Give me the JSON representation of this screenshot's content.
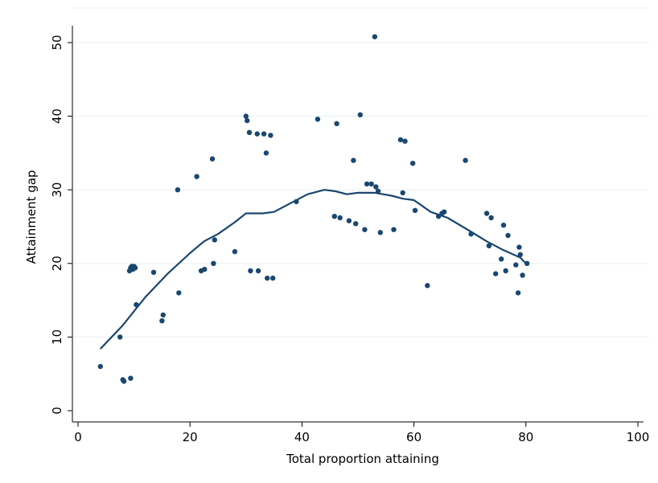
{
  "chart_data": {
    "type": "scatter",
    "xlabel": "Total proportion attaining",
    "ylabel": "Attainment gap",
    "xlim": [
      0,
      100
    ],
    "ylim": [
      0,
      50
    ],
    "xticks": [
      0,
      20,
      40,
      60,
      80,
      100
    ],
    "yticks": [
      0,
      10,
      20,
      30,
      40,
      50
    ],
    "grid": "horizontal",
    "colors": {
      "marker": "#1a476f",
      "line": "#1a476f",
      "grid": "#eaf2f3",
      "axis": "#000000"
    },
    "series": [
      {
        "type": "scatter",
        "points": [
          [
            4,
            6
          ],
          [
            7.5,
            10
          ],
          [
            8,
            4.2
          ],
          [
            8.2,
            4
          ],
          [
            9.4,
            4.4
          ],
          [
            9.2,
            19
          ],
          [
            9.4,
            19.4
          ],
          [
            9.6,
            19.6
          ],
          [
            9.8,
            19.2
          ],
          [
            10,
            19.6
          ],
          [
            10.2,
            19.4
          ],
          [
            10.4,
            14.4
          ],
          [
            13.5,
            18.8
          ],
          [
            15,
            12.2
          ],
          [
            15.2,
            13
          ],
          [
            18,
            16
          ],
          [
            17.8,
            30
          ],
          [
            21.2,
            31.8
          ],
          [
            22,
            19
          ],
          [
            22.6,
            19.2
          ],
          [
            24,
            34.2
          ],
          [
            24.2,
            20
          ],
          [
            24.4,
            23.2
          ],
          [
            28,
            21.6
          ],
          [
            30,
            40
          ],
          [
            30.2,
            39.4
          ],
          [
            30.6,
            37.8
          ],
          [
            30.8,
            19
          ],
          [
            32,
            37.6
          ],
          [
            32.2,
            19
          ],
          [
            33.2,
            37.6
          ],
          [
            33.6,
            35
          ],
          [
            33.8,
            18
          ],
          [
            34.4,
            37.4
          ],
          [
            34.8,
            18
          ],
          [
            39,
            28.4
          ],
          [
            42.8,
            39.6
          ],
          [
            45.8,
            26.4
          ],
          [
            46.2,
            39
          ],
          [
            46.8,
            26.2
          ],
          [
            48.4,
            25.8
          ],
          [
            49.2,
            34
          ],
          [
            49.6,
            25.4
          ],
          [
            50.4,
            40.2
          ],
          [
            51.2,
            24.6
          ],
          [
            51.6,
            30.8
          ],
          [
            52.4,
            30.8
          ],
          [
            53,
            50.8
          ],
          [
            53.2,
            30.4
          ],
          [
            53.6,
            29.8
          ],
          [
            54,
            24.2
          ],
          [
            56.4,
            24.6
          ],
          [
            57.6,
            36.8
          ],
          [
            58,
            29.6
          ],
          [
            58.4,
            36.6
          ],
          [
            59.8,
            33.6
          ],
          [
            60.2,
            27.2
          ],
          [
            62.4,
            17
          ],
          [
            64.4,
            26.4
          ],
          [
            65,
            26.8
          ],
          [
            65.4,
            27
          ],
          [
            69.2,
            34
          ],
          [
            70.2,
            24
          ],
          [
            73,
            26.8
          ],
          [
            73.4,
            22.4
          ],
          [
            73.8,
            26.2
          ],
          [
            74.6,
            18.6
          ],
          [
            75.6,
            20.6
          ],
          [
            76,
            25.2
          ],
          [
            76.4,
            19
          ],
          [
            76.8,
            23.8
          ],
          [
            78.2,
            19.8
          ],
          [
            78.6,
            16
          ],
          [
            78.8,
            22.2
          ],
          [
            79,
            21.2
          ],
          [
            79.4,
            18.4
          ],
          [
            80.2,
            20
          ]
        ]
      },
      {
        "type": "line",
        "points": [
          [
            4,
            8.4
          ],
          [
            8,
            11.6
          ],
          [
            12,
            15.4
          ],
          [
            16,
            18.6
          ],
          [
            20,
            21.4
          ],
          [
            22.5,
            23
          ],
          [
            25,
            24
          ],
          [
            28,
            25.6
          ],
          [
            30,
            26.8
          ],
          [
            33,
            26.8
          ],
          [
            35,
            27
          ],
          [
            38,
            28.2
          ],
          [
            41,
            29.4
          ],
          [
            44,
            30
          ],
          [
            46,
            29.8
          ],
          [
            48,
            29.4
          ],
          [
            50,
            29.6
          ],
          [
            53,
            29.6
          ],
          [
            56,
            29.2
          ],
          [
            58,
            28.8
          ],
          [
            60,
            28.6
          ],
          [
            63,
            27
          ],
          [
            66,
            26.2
          ],
          [
            70,
            24.4
          ],
          [
            73,
            23
          ],
          [
            76,
            21.8
          ],
          [
            79,
            20.8
          ],
          [
            80,
            20
          ]
        ]
      }
    ]
  }
}
